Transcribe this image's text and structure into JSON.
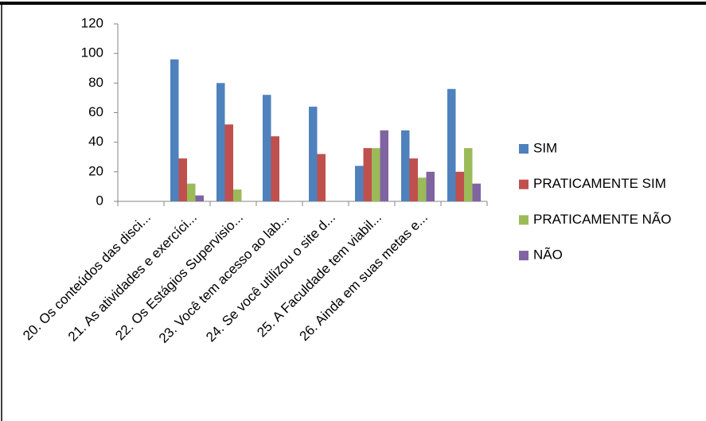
{
  "chart_data": {
    "type": "bar",
    "categories": [
      "20. Os conteúdos das disci...",
      "21. As atividades e exercíci...",
      "22. Os Estágios Supervisio...",
      "23. Você tem acesso ao lab...",
      "24. Se você utilizou o site d...",
      "25. A Faculdade tem viabil...",
      "26. Ainda em suas metas e...",
      null
    ],
    "series": [
      {
        "name": "SIM",
        "color": "#4f81bd",
        "values": [
          0,
          96,
          80,
          72,
          64,
          24,
          48,
          76
        ]
      },
      {
        "name": "PRATICAMENTE SIM",
        "color": "#c0504d",
        "values": [
          0,
          29,
          52,
          44,
          32,
          36,
          29,
          20
        ]
      },
      {
        "name": "PRATICAMENTE NÃO",
        "color": "#9bbb59",
        "values": [
          0,
          12,
          8,
          0,
          0,
          36,
          16,
          36
        ]
      },
      {
        "name": "NÃO",
        "color": "#8064a2",
        "values": [
          0,
          4,
          0,
          0,
          0,
          48,
          20,
          12
        ]
      }
    ],
    "ylim": [
      0,
      120
    ],
    "yticks": [
      0,
      20,
      40,
      60,
      80,
      100,
      120
    ],
    "grid": false,
    "legend": "right"
  }
}
